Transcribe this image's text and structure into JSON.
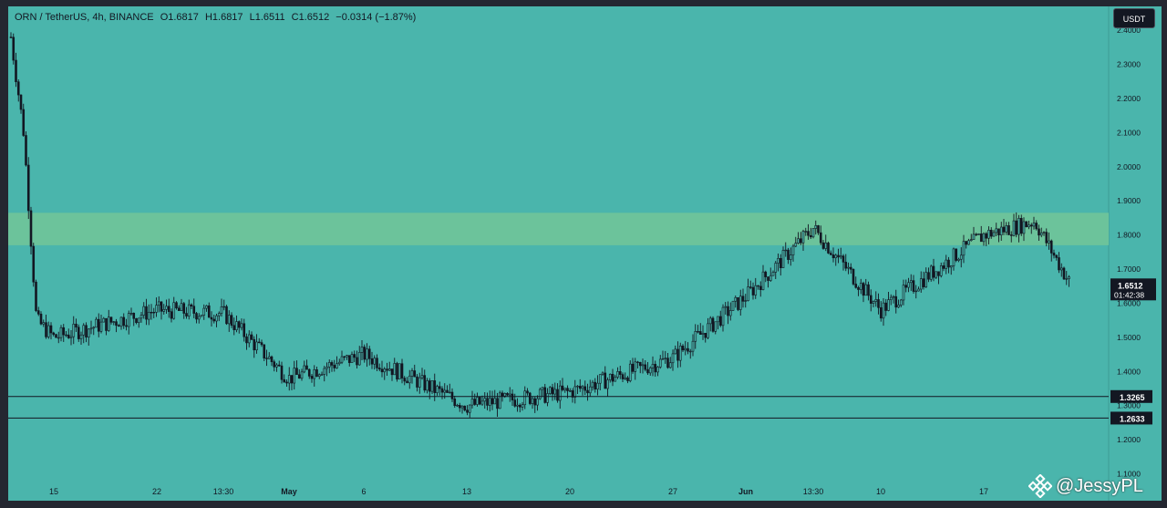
{
  "symbol_bar": {
    "symbol": "ORN / TetherUS, 4h, BINANCE",
    "open": "O1.6817",
    "high": "H1.6817",
    "low": "L1.6511",
    "close": "C1.6512",
    "change": "−0.0314 (−1.87%)"
  },
  "currency_button": "USDT",
  "price_scale_labels": [
    "2.4000",
    "2.3000",
    "2.2000",
    "2.1000",
    "2.0000",
    "1.9000",
    "1.8000",
    "1.7000",
    "1.6000",
    "1.5000",
    "1.4000",
    "1.3000",
    "1.2000",
    "1.1000"
  ],
  "time_labels": [
    "15",
    "22",
    "13:30",
    "May",
    "6",
    "13",
    "20",
    "27",
    "Jun",
    "13:30",
    "10",
    "17"
  ],
  "last_price": {
    "value": "1.6512",
    "countdown": "01:42:38"
  },
  "support_lines": [
    {
      "value": "1.3265"
    },
    {
      "value": "1.2633"
    }
  ],
  "resistance_zone": {
    "low": 1.77,
    "high": 1.865
  },
  "watermark": "@JessyPL",
  "colors": {
    "background": "#4ab5ac",
    "zone": "#6cc39b",
    "candle": "#131722",
    "frame": "#242731"
  },
  "chart_data": {
    "type": "candlestick",
    "title": "ORN / TetherUS, 4h, BINANCE",
    "ylim": [
      1.08,
      2.47
    ],
    "y_scale": "linear",
    "x_ticks": [
      "15",
      "22",
      "13:30",
      "May",
      "6",
      "13",
      "20",
      "27",
      "Jun",
      "13:30",
      "10",
      "17"
    ],
    "close_path": [
      [
        "15",
        1.5
      ],
      [
        "22",
        1.58
      ],
      [
        "13:30",
        1.57
      ],
      [
        "May",
        1.38
      ],
      [
        "6",
        1.45
      ],
      [
        "13",
        1.3
      ],
      [
        "20",
        1.34
      ],
      [
        "27",
        1.44
      ],
      [
        "Jun",
        1.62
      ],
      [
        "13:30",
        1.82
      ],
      [
        "10",
        1.58
      ],
      [
        "17",
        1.8
      ]
    ],
    "last_close": 1.6512,
    "horizontal_lines": [
      1.3265,
      1.2633
    ],
    "zone": [
      1.77,
      1.865
    ],
    "grid": false
  }
}
